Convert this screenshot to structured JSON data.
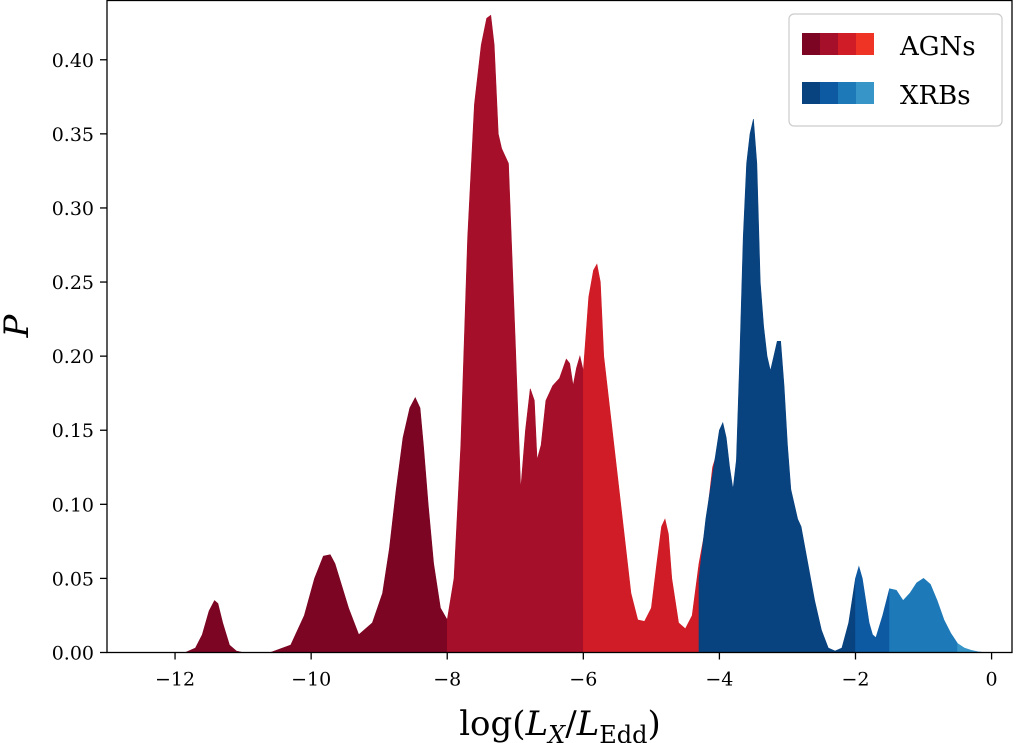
{
  "chart_data": {
    "type": "area",
    "xlabel_parts": {
      "prefix": "log(",
      "var1": "L",
      "sub1": "X",
      "slash": "/",
      "var2": "L",
      "sub2": "Edd",
      "suffix": ")"
    },
    "ylabel": "P",
    "xlim": [
      -13.0,
      0.3
    ],
    "ylim": [
      0.0,
      0.44
    ],
    "xticks": [
      -12,
      -10,
      -8,
      -6,
      -4,
      -2,
      0
    ],
    "xtick_labels": [
      "−12",
      "−10",
      "−8",
      "−6",
      "−4",
      "−2",
      "0"
    ],
    "yticks": [
      0.0,
      0.05,
      0.1,
      0.15,
      0.2,
      0.25,
      0.3,
      0.35,
      0.4
    ],
    "ytick_labels": [
      "0.00",
      "0.05",
      "0.10",
      "0.15",
      "0.20",
      "0.25",
      "0.30",
      "0.35",
      "0.40"
    ],
    "legend": {
      "position": "top-right",
      "entries": [
        {
          "label": "AGNs",
          "colors": [
            "#7b0523",
            "#a50f29",
            "#d01c26",
            "#ef3325"
          ]
        },
        {
          "label": "XRBs",
          "colors": [
            "#08427f",
            "#0e5aa2",
            "#1d79b8",
            "#3795c8"
          ]
        }
      ]
    },
    "series": [
      {
        "name": "AGNs",
        "segments": [
          {
            "range": [
              -12.0,
              -8.0
            ],
            "color": "#7b0523"
          },
          {
            "range": [
              -8.0,
              -6.0
            ],
            "color": "#a50f29"
          },
          {
            "range": [
              -6.0,
              -4.0
            ],
            "color": "#d01c26"
          },
          {
            "range": [
              -4.0,
              -2.7
            ],
            "color": "#ef3325"
          }
        ],
        "x": [
          -11.85,
          -11.7,
          -11.6,
          -11.5,
          -11.42,
          -11.37,
          -11.3,
          -11.2,
          -11.1,
          -11.0,
          -10.6,
          -10.3,
          -10.1,
          -9.95,
          -9.82,
          -9.72,
          -9.65,
          -9.55,
          -9.45,
          -9.3,
          -9.1,
          -8.95,
          -8.85,
          -8.75,
          -8.65,
          -8.55,
          -8.47,
          -8.4,
          -8.35,
          -8.28,
          -8.2,
          -8.1,
          -8.0,
          -7.9,
          -7.8,
          -7.7,
          -7.6,
          -7.5,
          -7.42,
          -7.36,
          -7.31,
          -7.25,
          -7.2,
          -7.1,
          -7.0,
          -6.92,
          -6.85,
          -6.78,
          -6.72,
          -6.68,
          -6.62,
          -6.55,
          -6.45,
          -6.35,
          -6.25,
          -6.2,
          -6.15,
          -6.1,
          -6.05,
          -6.0,
          -5.92,
          -5.85,
          -5.8,
          -5.75,
          -5.7,
          -5.6,
          -5.5,
          -5.4,
          -5.3,
          -5.2,
          -5.1,
          -5.0,
          -4.92,
          -4.85,
          -4.8,
          -4.75,
          -4.7,
          -4.6,
          -4.5,
          -4.4,
          -4.3,
          -4.2,
          -4.1,
          -4.0,
          -3.95,
          -3.9,
          -3.85,
          -3.8,
          -3.75,
          -3.7,
          -3.65,
          -3.6,
          -3.55,
          -3.5,
          -3.45,
          -3.4,
          -3.3,
          -3.2,
          -3.1,
          -3.05,
          -3.0,
          -2.95,
          -2.9,
          -2.85,
          -2.8,
          -2.75,
          -2.7
        ],
        "y": [
          0.0,
          0.003,
          0.012,
          0.028,
          0.035,
          0.033,
          0.02,
          0.005,
          0.001,
          0.0,
          0.0,
          0.005,
          0.025,
          0.05,
          0.065,
          0.066,
          0.06,
          0.045,
          0.03,
          0.012,
          0.02,
          0.04,
          0.07,
          0.11,
          0.145,
          0.165,
          0.172,
          0.165,
          0.14,
          0.1,
          0.06,
          0.03,
          0.022,
          0.05,
          0.14,
          0.28,
          0.37,
          0.41,
          0.428,
          0.43,
          0.41,
          0.35,
          0.34,
          0.33,
          0.21,
          0.11,
          0.15,
          0.178,
          0.17,
          0.13,
          0.14,
          0.17,
          0.18,
          0.185,
          0.198,
          0.195,
          0.18,
          0.192,
          0.2,
          0.19,
          0.24,
          0.258,
          0.262,
          0.25,
          0.2,
          0.16,
          0.12,
          0.08,
          0.04,
          0.022,
          0.021,
          0.03,
          0.06,
          0.085,
          0.09,
          0.08,
          0.05,
          0.02,
          0.016,
          0.025,
          0.06,
          0.085,
          0.125,
          0.14,
          0.14,
          0.13,
          0.11,
          0.1,
          0.09,
          0.12,
          0.18,
          0.24,
          0.25,
          0.2,
          0.14,
          0.1,
          0.07,
          0.05,
          0.06,
          0.09,
          0.11,
          0.1,
          0.07,
          0.04,
          0.02,
          0.005,
          0.0
        ]
      },
      {
        "name": "XRBs",
        "segments": [
          {
            "range": [
              -4.3,
              -2.0
            ],
            "color": "#08427f"
          },
          {
            "range": [
              -2.0,
              -1.5
            ],
            "color": "#0e5aa2"
          },
          {
            "range": [
              -1.5,
              -0.5
            ],
            "color": "#1d79b8"
          },
          {
            "range": [
              -0.5,
              -0.1
            ],
            "color": "#3795c8"
          }
        ],
        "x": [
          -4.3,
          -4.2,
          -4.1,
          -4.0,
          -3.95,
          -3.9,
          -3.85,
          -3.8,
          -3.75,
          -3.7,
          -3.65,
          -3.6,
          -3.55,
          -3.5,
          -3.45,
          -3.4,
          -3.35,
          -3.3,
          -3.25,
          -3.2,
          -3.15,
          -3.1,
          -3.05,
          -3.0,
          -2.95,
          -2.9,
          -2.85,
          -2.8,
          -2.7,
          -2.6,
          -2.5,
          -2.4,
          -2.3,
          -2.2,
          -2.1,
          -2.0,
          -1.95,
          -1.9,
          -1.85,
          -1.8,
          -1.75,
          -1.7,
          -1.6,
          -1.5,
          -1.4,
          -1.3,
          -1.2,
          -1.1,
          -1.0,
          -0.9,
          -0.8,
          -0.7,
          -0.6,
          -0.5,
          -0.4,
          -0.3,
          -0.2,
          -0.1
        ],
        "y": [
          0.05,
          0.09,
          0.12,
          0.15,
          0.155,
          0.145,
          0.125,
          0.11,
          0.13,
          0.2,
          0.28,
          0.33,
          0.35,
          0.36,
          0.33,
          0.25,
          0.22,
          0.2,
          0.19,
          0.2,
          0.21,
          0.21,
          0.18,
          0.14,
          0.11,
          0.1,
          0.09,
          0.085,
          0.06,
          0.035,
          0.015,
          0.003,
          0.001,
          0.003,
          0.02,
          0.05,
          0.058,
          0.05,
          0.035,
          0.02,
          0.012,
          0.01,
          0.025,
          0.043,
          0.042,
          0.035,
          0.04,
          0.047,
          0.05,
          0.046,
          0.035,
          0.022,
          0.013,
          0.006,
          0.003,
          0.0015,
          0.0005,
          0.0
        ]
      }
    ]
  }
}
